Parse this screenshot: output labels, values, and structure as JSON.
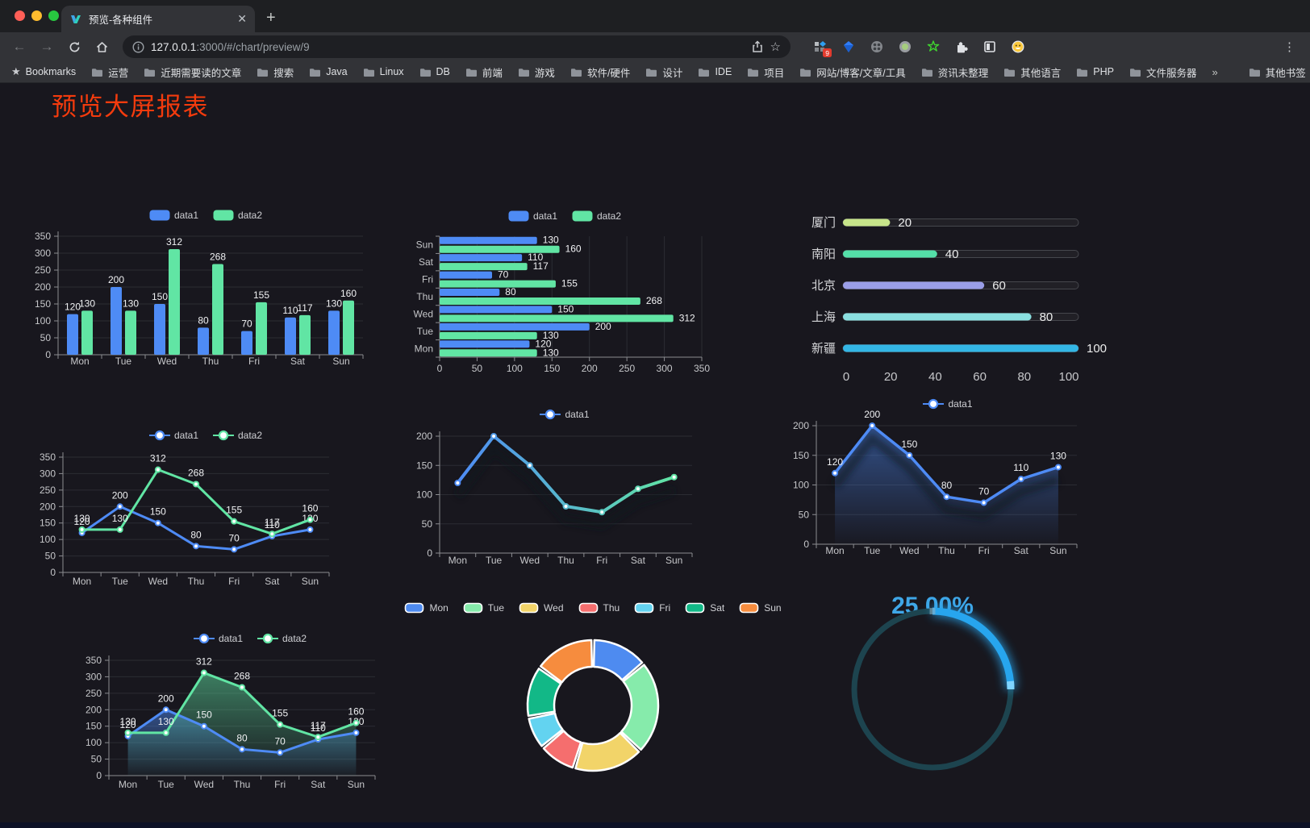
{
  "browser": {
    "tab": {
      "title": "预览-各种组件"
    },
    "url_host": "127.0.0.1",
    "url_rest": ":3000/#/chart/preview/9",
    "new_tab": "+",
    "tab_close": "✕",
    "menu_dots": "⋮",
    "bookmarks_label": "Bookmarks",
    "bookmarks": [
      "运营",
      "近期需要读的文章",
      "搜索",
      "Java",
      "Linux",
      "DB",
      "前端",
      "游戏",
      "软件/硬件",
      "设计",
      "IDE",
      "项目",
      "网站/博客/文章/工具",
      "资讯未整理",
      "其他语言",
      "PHP",
      "文件服务器"
    ],
    "bookmarks_overflow": "»",
    "other_bookmarks": "其他书签",
    "extensions": [
      {
        "name": "grid-extension",
        "badge": "9"
      },
      {
        "name": "gem-extension"
      },
      {
        "name": "gray-circle-extension"
      },
      {
        "name": "green-circle-extension"
      },
      {
        "name": "xdebug-star-extension"
      },
      {
        "name": "puzzle-extensions"
      },
      {
        "name": "contrast-extension"
      },
      {
        "name": "emoji-extension"
      }
    ]
  },
  "page": {
    "title": "预览大屏报表"
  },
  "palette": {
    "blue": "#4e8bf5",
    "green": "#61e5a4"
  },
  "chart_data": [
    {
      "type": "bar",
      "categories": [
        "Mon",
        "Tue",
        "Wed",
        "Thu",
        "Fri",
        "Sat",
        "Sun"
      ],
      "series": [
        {
          "name": "data1",
          "color": "#4e8bf5",
          "values": [
            120,
            200,
            150,
            80,
            70,
            110,
            130
          ]
        },
        {
          "name": "data2",
          "color": "#61e5a4",
          "values": [
            130,
            130,
            312,
            268,
            155,
            117,
            160
          ]
        }
      ],
      "ylim": [
        0,
        350
      ],
      "ystep": 50,
      "legend_position": "top",
      "grid": true
    },
    {
      "type": "bar-horizontal",
      "categories": [
        "Sun",
        "Sat",
        "Fri",
        "Thu",
        "Wed",
        "Tue",
        "Mon"
      ],
      "series": [
        {
          "name": "data1",
          "color": "#4e8bf5",
          "values": [
            130,
            110,
            70,
            80,
            150,
            200,
            120
          ]
        },
        {
          "name": "data2",
          "color": "#61e5a4",
          "values": [
            160,
            117,
            155,
            268,
            312,
            130,
            130
          ]
        }
      ],
      "xlim": [
        0,
        350
      ],
      "xstep": 50,
      "legend_position": "top",
      "grid": true
    },
    {
      "type": "progress-bars",
      "items": [
        {
          "label": "厦门",
          "value": 20,
          "color": "#c7e58a"
        },
        {
          "label": "南阳",
          "value": 40,
          "color": "#54dfa8"
        },
        {
          "label": "北京",
          "value": 60,
          "color": "#9a9ee8"
        },
        {
          "label": "上海",
          "value": 80,
          "color": "#8adfe0"
        },
        {
          "label": "新疆",
          "value": 100,
          "color": "#33b6e5"
        }
      ],
      "xlim": [
        0,
        100
      ],
      "xticks": [
        0,
        20,
        40,
        60,
        80,
        100
      ]
    },
    {
      "type": "line",
      "categories": [
        "Mon",
        "Tue",
        "Wed",
        "Thu",
        "Fri",
        "Sat",
        "Sun"
      ],
      "series": [
        {
          "name": "data1",
          "color": "#4e8bf5",
          "values": [
            120,
            200,
            150,
            80,
            70,
            110,
            130
          ]
        },
        {
          "name": "data2",
          "color": "#61e5a4",
          "values": [
            130,
            130,
            312,
            268,
            155,
            117,
            160
          ]
        }
      ],
      "ylim": [
        0,
        350
      ],
      "ystep": 50,
      "show_labels": true,
      "area": false
    },
    {
      "type": "line",
      "categories": [
        "Mon",
        "Tue",
        "Wed",
        "Thu",
        "Fri",
        "Sat",
        "Sun"
      ],
      "series": [
        {
          "name": "data1",
          "gradient": [
            "#4e8bf5",
            "#61e5a4"
          ],
          "values": [
            120,
            200,
            150,
            80,
            70,
            110,
            130
          ]
        }
      ],
      "ylim": [
        0,
        200
      ],
      "ystep": 50,
      "show_labels": false,
      "shadow": true
    },
    {
      "type": "area",
      "categories": [
        "Mon",
        "Tue",
        "Wed",
        "Thu",
        "Fri",
        "Sat",
        "Sun"
      ],
      "series": [
        {
          "name": "data1",
          "color": "#4e8bf5",
          "values": [
            120,
            200,
            150,
            80,
            70,
            110,
            130
          ]
        }
      ],
      "ylim": [
        0,
        200
      ],
      "ystep": 50,
      "show_labels": true
    },
    {
      "type": "line",
      "categories": [
        "Mon",
        "Tue",
        "Wed",
        "Thu",
        "Fri",
        "Sat",
        "Sun"
      ],
      "series": [
        {
          "name": "data1",
          "color": "#4e8bf5",
          "values": [
            120,
            200,
            150,
            80,
            70,
            110,
            130
          ]
        },
        {
          "name": "data2",
          "color": "#61e5a4",
          "values": [
            130,
            130,
            312,
            268,
            155,
            117,
            160
          ]
        }
      ],
      "ylim": [
        0,
        350
      ],
      "ystep": 50,
      "show_labels": true,
      "area": true
    },
    {
      "type": "pie",
      "categories": [
        "Mon",
        "Tue",
        "Wed",
        "Thu",
        "Fri",
        "Sat",
        "Sun"
      ],
      "values": [
        120,
        200,
        150,
        80,
        70,
        110,
        130
      ],
      "colors": [
        "#4e8bf0",
        "#86ebab",
        "#f2d469",
        "#f56e6e",
        "#63d3f0",
        "#12b887",
        "#f68c3e"
      ],
      "inner_radius_ratio": 0.6,
      "border_color": "#ffffff"
    },
    {
      "type": "gauge",
      "percent": 25,
      "value_label": "25.00%",
      "arc_color": "#27a5ee",
      "track_color": "#1d444f",
      "text_color": "#3fa7e8"
    }
  ]
}
